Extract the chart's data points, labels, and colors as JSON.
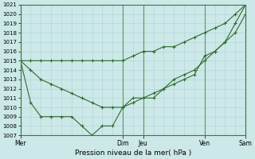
{
  "xlabel": "Pression niveau de la mer( hPa )",
  "background_color": "#cce8e8",
  "grid_color": "#b0d4d4",
  "line_color": "#2d6b2d",
  "ylim": [
    1007,
    1021
  ],
  "yticks": [
    1007,
    1008,
    1009,
    1010,
    1011,
    1012,
    1013,
    1014,
    1015,
    1016,
    1017,
    1018,
    1019,
    1020,
    1021
  ],
  "day_positions": [
    0,
    60,
    72,
    108,
    132
  ],
  "day_labels": [
    "Mer",
    "Dim",
    "Jeu",
    "Ven",
    "Sam"
  ],
  "xlim": [
    0,
    132
  ],
  "line1_x": [
    0,
    6,
    12,
    18,
    24,
    30,
    36,
    42,
    48,
    54,
    60,
    66,
    72,
    78,
    84,
    90,
    96,
    102,
    108,
    114,
    120,
    126,
    132
  ],
  "line1_y": [
    1015,
    1015,
    1015,
    1015,
    1015,
    1015,
    1015,
    1015,
    1015,
    1015,
    1015,
    1015.5,
    1016,
    1016,
    1016.5,
    1016.5,
    1017,
    1017.5,
    1018,
    1018.5,
    1019,
    1020,
    1021
  ],
  "line2_x": [
    0,
    6,
    12,
    18,
    24,
    30,
    36,
    42,
    48,
    54,
    60,
    66,
    72,
    78,
    84,
    90,
    96,
    102,
    108,
    114,
    120,
    126,
    132
  ],
  "line2_y": [
    1015,
    1014,
    1013,
    1012.5,
    1012,
    1011.5,
    1011,
    1010.5,
    1010,
    1010,
    1010,
    1011,
    1011,
    1011.5,
    1012,
    1013,
    1013.5,
    1014,
    1015,
    1016,
    1017,
    1018,
    1020
  ],
  "line3_x": [
    0,
    6,
    12,
    18,
    24,
    30,
    36,
    42,
    48,
    54,
    60,
    66,
    72,
    78,
    84,
    90,
    96,
    102,
    108,
    114,
    120,
    126,
    132
  ],
  "line3_y": [
    1015,
    1010.5,
    1009,
    1009,
    1009,
    1009,
    1008,
    1007,
    1008,
    1008,
    1010,
    1010.5,
    1011,
    1011,
    1012,
    1012.5,
    1013,
    1013.5,
    1015.5,
    1016,
    1017,
    1019,
    1021
  ]
}
